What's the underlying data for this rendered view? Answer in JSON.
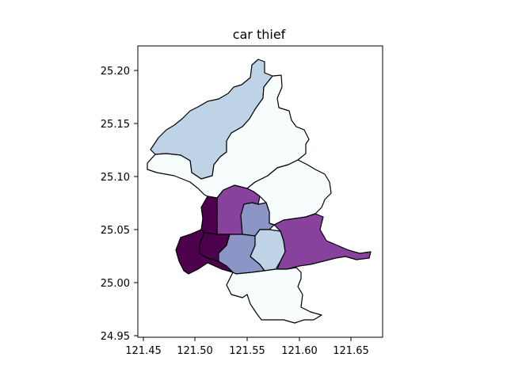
{
  "title": "car thief",
  "x_ticks": [
    "121.45",
    "121.50",
    "121.55",
    "121.60",
    "121.65"
  ],
  "y_ticks": [
    "25.20",
    "25.15",
    "25.10",
    "25.05",
    "25.00",
    "24.95"
  ],
  "map": {
    "type": "choropleth",
    "colormap": "BuPu",
    "x_range": [
      121.45,
      121.67
    ],
    "y_range": [
      24.95,
      25.22
    ],
    "regions": [
      {
        "id": "beitou",
        "shade": "light-blue",
        "color": "#bfd3e6"
      },
      {
        "id": "shilin",
        "shade": "lightest",
        "color": "#f7fcfd"
      },
      {
        "id": "neihu",
        "shade": "lightest",
        "color": "#f7fcfd"
      },
      {
        "id": "zhongshan",
        "shade": "purple",
        "color": "#88419d"
      },
      {
        "id": "datong",
        "shade": "darkest",
        "color": "#4d004b"
      },
      {
        "id": "songshan",
        "shade": "medium",
        "color": "#8c96c6"
      },
      {
        "id": "wanhua",
        "shade": "darkest",
        "color": "#4d004b"
      },
      {
        "id": "zhongzheng",
        "shade": "darkest",
        "color": "#4d004b"
      },
      {
        "id": "daan",
        "shade": "medium",
        "color": "#8c96c6"
      },
      {
        "id": "xinyi",
        "shade": "light-blue",
        "color": "#bfd3e6"
      },
      {
        "id": "nangang",
        "shade": "purple",
        "color": "#88419d"
      },
      {
        "id": "wenshan",
        "shade": "lightest",
        "color": "#f7fcfd"
      }
    ]
  }
}
